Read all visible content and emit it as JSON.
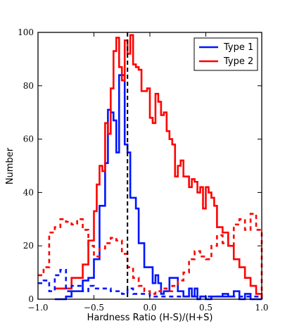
{
  "chart_data": {
    "type": "line",
    "xlabel": "Hardness Ratio (H-S)/(H+S)",
    "ylabel": "Number",
    "xlim": [
      -1.0,
      1.0
    ],
    "ylim": [
      0,
      100
    ],
    "x_ticks": [
      "−1.0",
      "−0.5",
      "0.0",
      "0.5",
      "1.0"
    ],
    "y_ticks": [
      "0",
      "20",
      "40",
      "60",
      "80",
      "100"
    ],
    "x_tick_values": [
      -1.0,
      -0.5,
      0.0,
      0.5,
      1.0
    ],
    "y_tick_values": [
      0,
      20,
      40,
      60,
      80,
      100
    ],
    "legend_position": "top-right",
    "vline": {
      "x": -0.2,
      "style": "dashed",
      "color": "#000000"
    },
    "series": [
      {
        "name": "Type 1",
        "color": "#0015ff",
        "style": "solid",
        "in_legend": true,
        "x": [
          -0.85,
          -0.8,
          -0.75,
          -0.7,
          -0.65,
          -0.6,
          -0.55,
          -0.5,
          -0.45,
          -0.4,
          -0.375,
          -0.35,
          -0.325,
          -0.3,
          -0.275,
          -0.25,
          -0.225,
          -0.2,
          -0.175,
          -0.15,
          -0.125,
          -0.1,
          -0.075,
          -0.05,
          -0.025,
          0.0,
          0.025,
          0.05,
          0.075,
          0.1,
          0.125,
          0.15,
          0.175,
          0.2,
          0.225,
          0.25,
          0.275,
          0.3,
          0.325,
          0.35,
          0.375,
          0.4,
          0.425,
          0.45,
          0.475,
          0.5,
          0.525,
          0.55,
          0.6,
          0.65,
          0.7,
          0.75,
          0.8,
          0.85,
          0.9,
          0.95,
          1.0
        ],
        "y": [
          0,
          0,
          1,
          3,
          3,
          7,
          8,
          15,
          35,
          51,
          71,
          70,
          67,
          55,
          84,
          84,
          58,
          55,
          38,
          38,
          34,
          21,
          21,
          12,
          12,
          12,
          6,
          9,
          6,
          2,
          3,
          3,
          8,
          8,
          8,
          3,
          3,
          1,
          1,
          4,
          1,
          4,
          0,
          1,
          1,
          0,
          0,
          1,
          1,
          2,
          1,
          3,
          0,
          2,
          0,
          0,
          0
        ]
      },
      {
        "name": "Type 2",
        "color": "#ff0000",
        "style": "solid",
        "in_legend": true,
        "x": [
          -0.85,
          -0.8,
          -0.75,
          -0.7,
          -0.65,
          -0.6,
          -0.55,
          -0.5,
          -0.475,
          -0.45,
          -0.425,
          -0.4,
          -0.375,
          -0.35,
          -0.325,
          -0.3,
          -0.275,
          -0.25,
          -0.225,
          -0.2,
          -0.175,
          -0.15,
          -0.125,
          -0.1,
          -0.075,
          -0.05,
          -0.025,
          0.0,
          0.025,
          0.05,
          0.075,
          0.1,
          0.125,
          0.15,
          0.175,
          0.2,
          0.225,
          0.25,
          0.275,
          0.3,
          0.325,
          0.35,
          0.375,
          0.4,
          0.425,
          0.45,
          0.475,
          0.5,
          0.525,
          0.55,
          0.575,
          0.6,
          0.625,
          0.65,
          0.7,
          0.75,
          0.8,
          0.85,
          0.9,
          0.95,
          1.0
        ],
        "y": [
          4,
          4,
          4,
          8,
          8,
          13,
          22,
          33,
          43,
          50,
          48,
          66,
          62,
          79,
          93,
          98,
          87,
          82,
          97,
          92,
          99,
          88,
          87,
          86,
          78,
          78,
          79,
          68,
          66,
          77,
          74,
          69,
          70,
          63,
          60,
          58,
          46,
          50,
          52,
          46,
          46,
          42,
          45,
          44,
          40,
          42,
          34,
          42,
          40,
          38,
          35,
          27,
          27,
          25,
          20,
          15,
          12,
          8,
          5,
          2,
          0
        ]
      },
      {
        "name": "Type 1 (dashed)",
        "color": "#0015ff",
        "style": "dashed",
        "in_legend": false,
        "x": [
          -1.0,
          -0.95,
          -0.9,
          -0.85,
          -0.8,
          -0.75,
          -0.7,
          -0.65,
          -0.6,
          -0.55,
          -0.5,
          -0.45,
          -0.4,
          -0.35,
          -0.3,
          -0.25,
          -0.2,
          -0.15,
          -0.1,
          -0.05,
          0.0,
          0.05,
          0.1,
          0.15,
          0.2,
          0.25,
          0.3,
          0.35,
          0.4,
          0.45,
          0.5,
          0.55,
          0.6,
          0.65,
          0.7,
          0.75,
          0.8,
          0.85,
          0.9,
          0.95,
          1.0
        ],
        "y": [
          6,
          7,
          3,
          9,
          11,
          3,
          5,
          5,
          3,
          5,
          4,
          4,
          4,
          3,
          3,
          2,
          4,
          2,
          2,
          2,
          1,
          1,
          1,
          1,
          1,
          1,
          1,
          1,
          1,
          1,
          1,
          1,
          1,
          1,
          1,
          1,
          1,
          1,
          1,
          1,
          0
        ]
      },
      {
        "name": "Type 2 (dashed)",
        "color": "#ff0000",
        "style": "dashed",
        "in_legend": false,
        "x": [
          -1.0,
          -0.95,
          -0.9,
          -0.85,
          -0.8,
          -0.75,
          -0.7,
          -0.65,
          -0.6,
          -0.55,
          -0.5,
          -0.45,
          -0.4,
          -0.35,
          -0.3,
          -0.25,
          -0.2,
          -0.15,
          -0.1,
          -0.05,
          0.0,
          0.05,
          0.1,
          0.15,
          0.2,
          0.25,
          0.3,
          0.35,
          0.4,
          0.45,
          0.5,
          0.55,
          0.6,
          0.65,
          0.7,
          0.75,
          0.8,
          0.85,
          0.9,
          0.95,
          1.0
        ],
        "y": [
          9,
          12,
          25,
          27,
          30,
          29,
          28,
          30,
          26,
          20,
          16,
          19,
          21,
          23,
          22,
          17,
          12,
          8,
          5,
          3,
          2,
          3,
          4,
          3,
          5,
          7,
          10,
          15,
          18,
          16,
          15,
          20,
          24,
          21,
          20,
          28,
          30,
          26,
          32,
          26,
          0
        ]
      }
    ]
  }
}
